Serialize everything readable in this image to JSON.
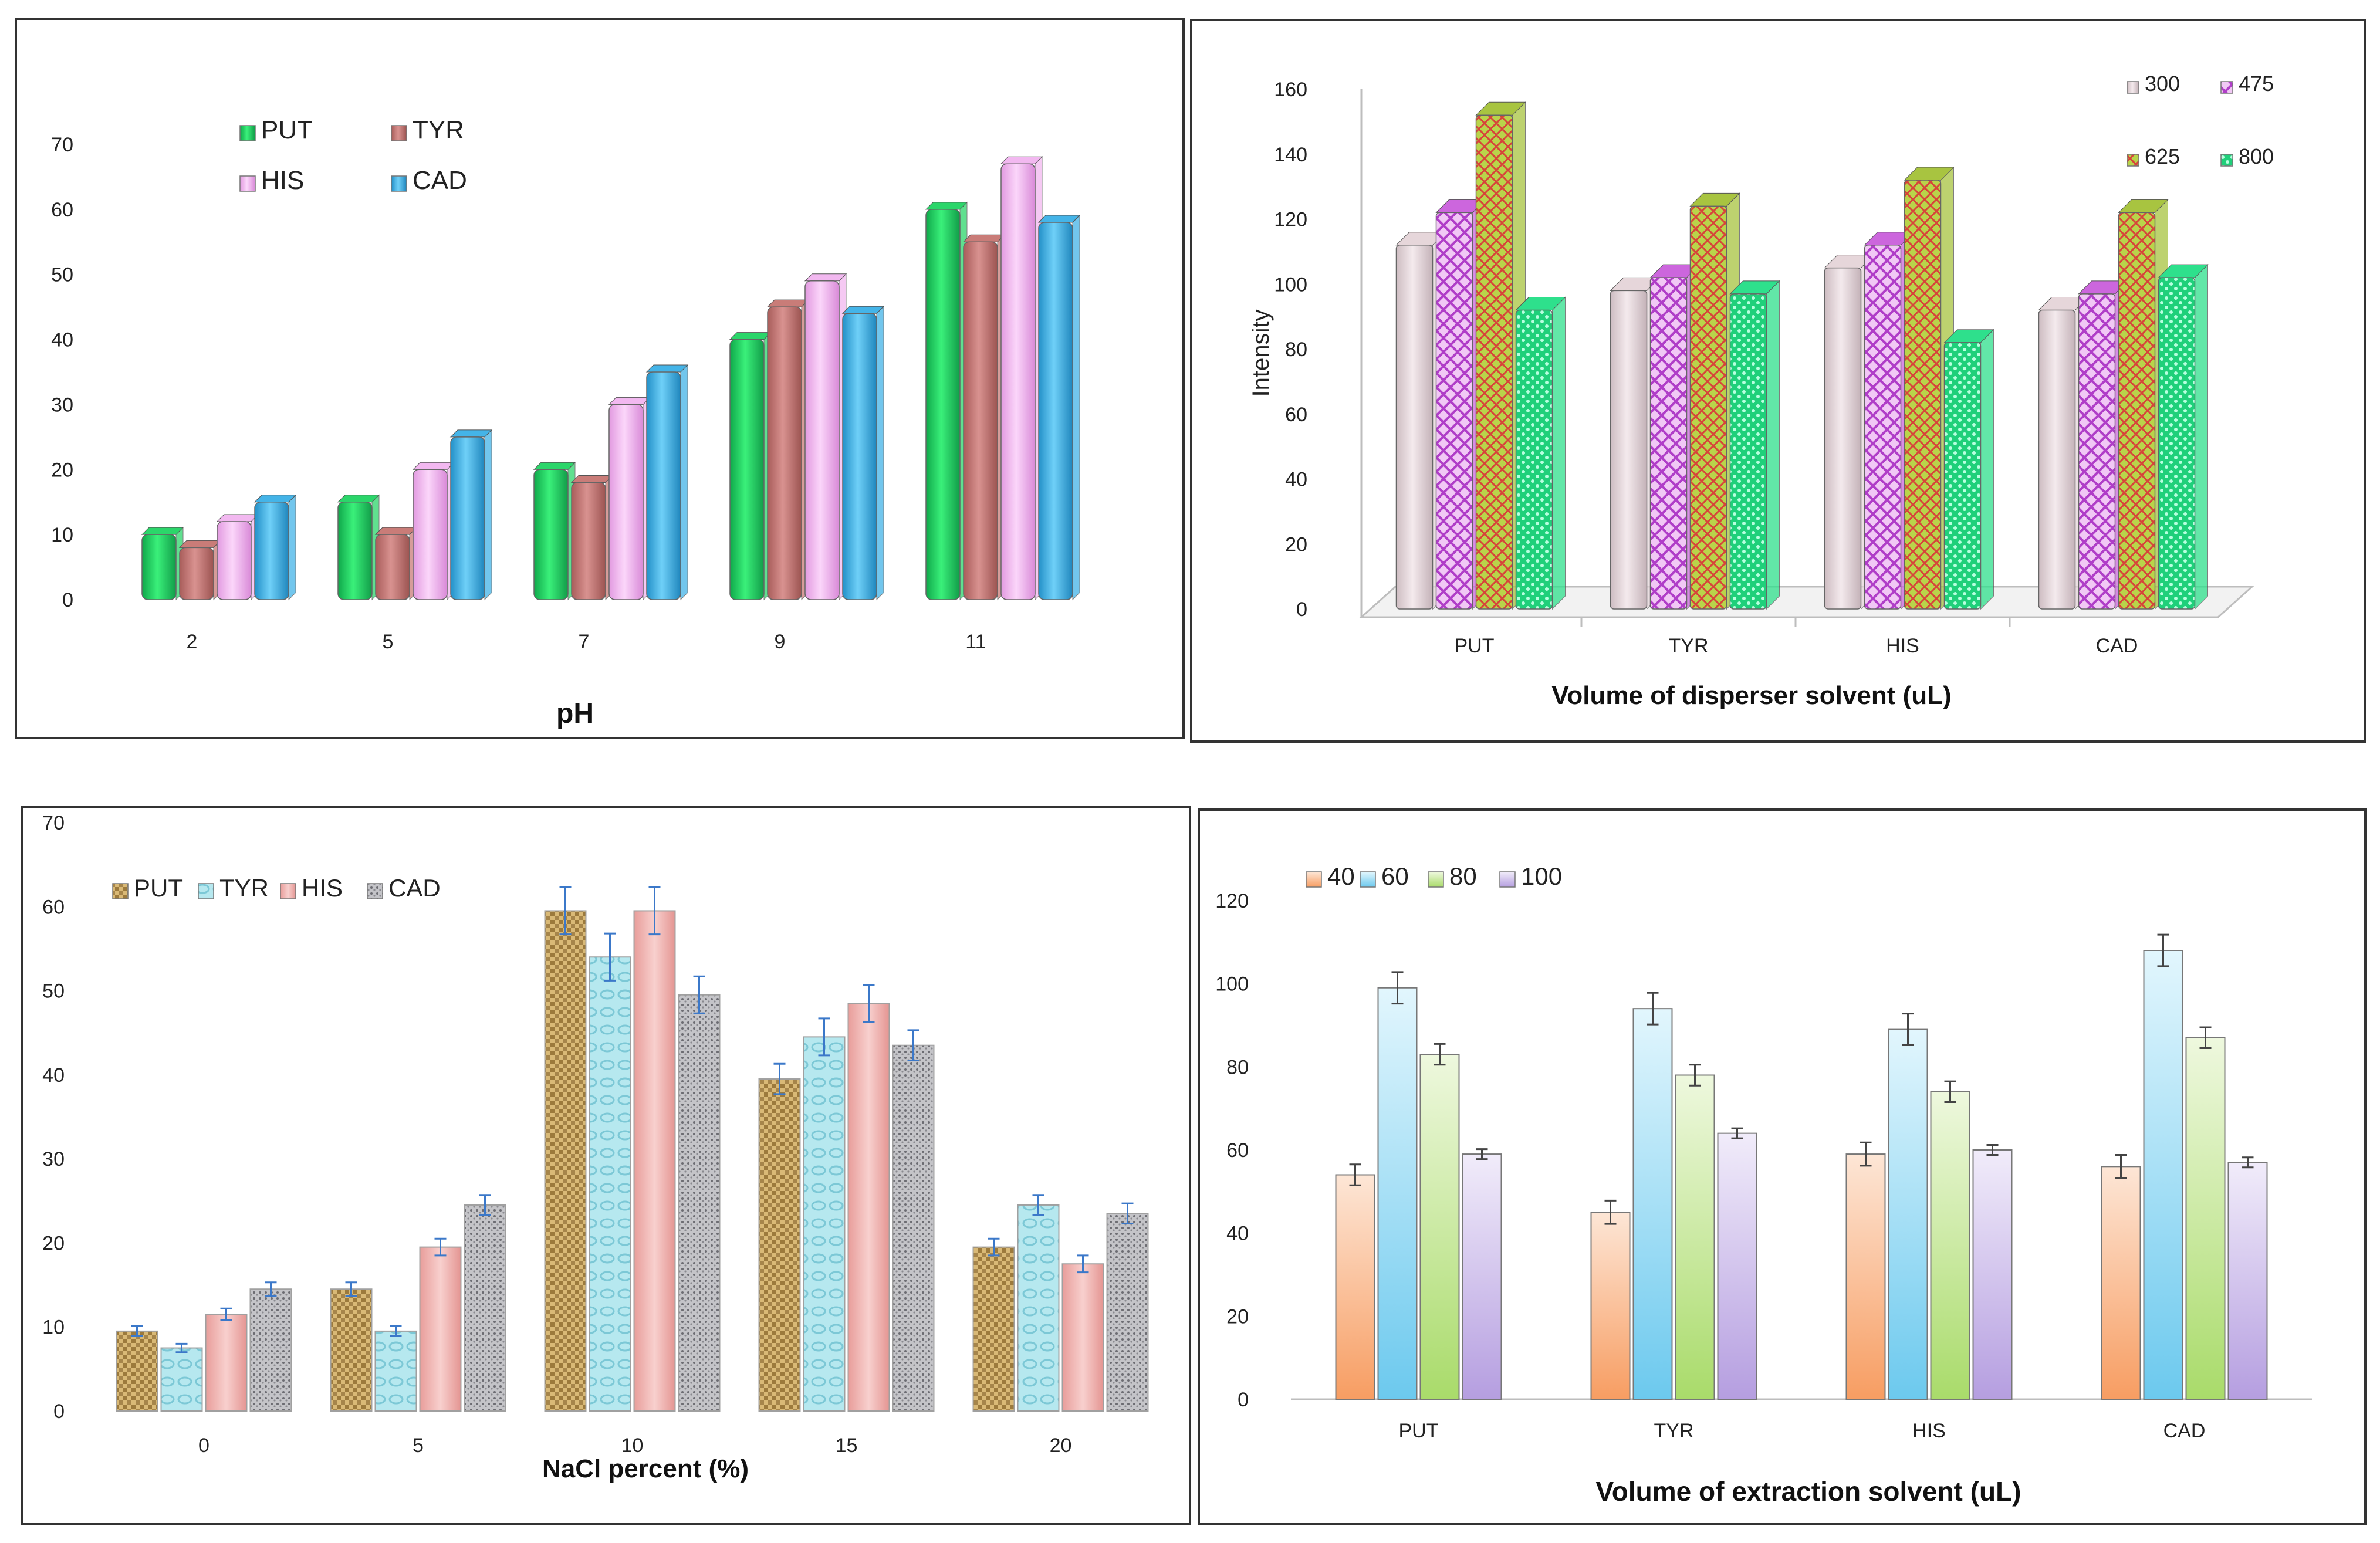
{
  "chart_data": [
    {
      "type": "bar",
      "panel": "top-left",
      "title": "",
      "xlabel": "pH",
      "ylabel": "",
      "categories": [
        "2",
        "5",
        "7",
        "9",
        "11"
      ],
      "yticks": [
        "0",
        "10",
        "20",
        "30",
        "40",
        "50",
        "60",
        "70"
      ],
      "ylim": [
        0,
        70
      ],
      "series": [
        {
          "name": "PUT",
          "values": [
            10,
            15,
            20,
            40,
            60
          ],
          "color": "#2bd66a"
        },
        {
          "name": "TYR",
          "values": [
            8,
            10,
            18,
            45,
            55
          ],
          "color": "#c97c78"
        },
        {
          "name": "HIS",
          "values": [
            12,
            20,
            30,
            49,
            67
          ],
          "color": "#f2b8f0"
        },
        {
          "name": "CAD",
          "values": [
            15,
            25,
            35,
            44,
            58
          ],
          "color": "#44b4e8"
        }
      ],
      "legend": "top-left"
    },
    {
      "type": "bar",
      "panel": "top-right",
      "title": "",
      "xlabel": "Volume of disperser solvent (uL)",
      "ylabel": "Intensity",
      "categories": [
        "PUT",
        "TYR",
        "HIS",
        "CAD"
      ],
      "yticks": [
        "0",
        "20",
        "40",
        "60",
        "80",
        "100",
        "120",
        "140",
        "160"
      ],
      "ylim": [
        0,
        160
      ],
      "series": [
        {
          "name": "300",
          "values": [
            112,
            98,
            105,
            92
          ],
          "color": "#e6d6da"
        },
        {
          "name": "475",
          "values": [
            122,
            102,
            112,
            97
          ],
          "color": "#cc66dd"
        },
        {
          "name": "625",
          "values": [
            152,
            124,
            132,
            122
          ],
          "color": "#a8c440"
        },
        {
          "name": "800",
          "values": [
            92,
            97,
            82,
            102
          ],
          "color": "#2ee08c"
        }
      ],
      "legend": "top-right"
    },
    {
      "type": "bar",
      "panel": "bottom-left",
      "title": "",
      "xlabel": "NaCl percent (%)",
      "ylabel": "",
      "categories": [
        "0",
        "5",
        "10",
        "15",
        "20"
      ],
      "yticks": [
        "0",
        "10",
        "20",
        "30",
        "40",
        "50",
        "60",
        "70"
      ],
      "ylim": [
        0,
        70
      ],
      "series": [
        {
          "name": "PUT",
          "values": [
            9.5,
            14.5,
            59.5,
            39.5,
            19.5
          ],
          "errors": [
            0.6,
            0.8,
            2.8,
            1.8,
            1.0
          ],
          "color": "#c7a55e"
        },
        {
          "name": "TYR",
          "values": [
            7.5,
            9.5,
            54,
            44.5,
            24.5
          ],
          "errors": [
            0.5,
            0.6,
            2.8,
            2.2,
            1.2
          ],
          "color": "#a9e3ea"
        },
        {
          "name": "HIS",
          "values": [
            11.5,
            19.5,
            59.5,
            48.5,
            17.5
          ],
          "errors": [
            0.7,
            1.0,
            2.8,
            2.2,
            1.0
          ],
          "color": "#f0b3b0"
        },
        {
          "name": "CAD",
          "values": [
            14.5,
            24.5,
            49.5,
            43.5,
            23.5
          ],
          "errors": [
            0.8,
            1.2,
            2.2,
            1.8,
            1.2
          ],
          "color": "#a7a7ac"
        }
      ],
      "legend": "top-left"
    },
    {
      "type": "bar",
      "panel": "bottom-right",
      "title": "",
      "xlabel": "Volume  of  extraction  solvent  (uL)",
      "ylabel": "",
      "categories": [
        "PUT",
        "TYR",
        "HIS",
        "CAD"
      ],
      "yticks": [
        "0",
        "20",
        "40",
        "60",
        "80",
        "100",
        "120"
      ],
      "ylim": [
        0,
        120
      ],
      "series": [
        {
          "name": "40",
          "values": [
            54,
            45,
            59,
            56
          ],
          "errors": [
            2.5,
            2.8,
            2.8,
            2.8
          ],
          "color": "#f9b98a"
        },
        {
          "name": "60",
          "values": [
            99,
            94,
            89,
            108
          ],
          "errors": [
            3.8,
            3.8,
            3.8,
            3.8
          ],
          "color": "#8fd6f0"
        },
        {
          "name": "80",
          "values": [
            83,
            78,
            74,
            87
          ],
          "errors": [
            2.5,
            2.5,
            2.5,
            2.5
          ],
          "color": "#bfe48c"
        },
        {
          "name": "100",
          "values": [
            59,
            64,
            60,
            57
          ],
          "errors": [
            1.2,
            1.2,
            1.2,
            1.2
          ],
          "color": "#c8b5e6"
        }
      ],
      "legend": "top-left"
    }
  ]
}
